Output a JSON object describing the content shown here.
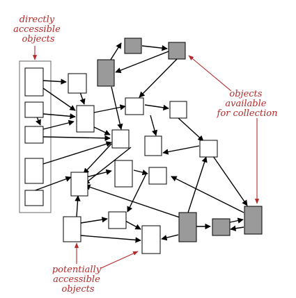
{
  "labels": {
    "roots": [
      "directly",
      "accessible",
      "objects"
    ],
    "garbage": [
      "objects",
      "available",
      "for collection"
    ],
    "potential": [
      "potentially",
      "accessible",
      "objects"
    ]
  },
  "colors": {
    "annotation": "#b52a2a",
    "collectible_fill": "#9a9a9a",
    "object_fill": "#ffffff",
    "edge": "#000000"
  }
}
